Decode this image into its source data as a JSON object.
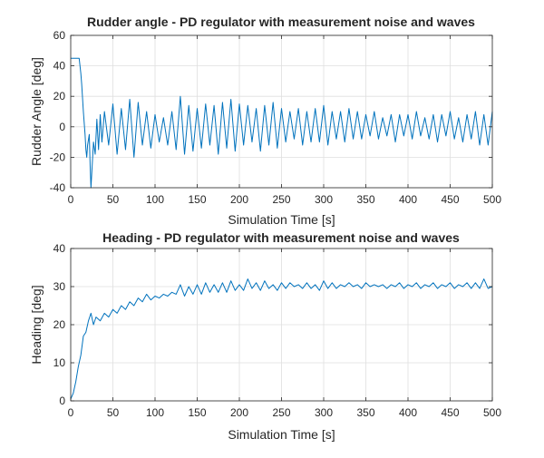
{
  "colors": {
    "line": "#0072BD",
    "grid": "#dfdfdf",
    "axes": "#262626",
    "background": "#ffffff"
  },
  "chart_data": [
    {
      "type": "line",
      "title": "Rudder angle - PD regulator with measurement noise and waves",
      "xlabel": "Simulation Time [s]",
      "ylabel": "Rudder Angle [deg]",
      "xlim": [
        0,
        500
      ],
      "ylim": [
        -40,
        60
      ],
      "xticks": [
        0,
        50,
        100,
        150,
        200,
        250,
        300,
        350,
        400,
        450,
        500
      ],
      "yticks": [
        -40,
        -20,
        0,
        20,
        40,
        60
      ],
      "grid": true,
      "series": [
        {
          "x": [
            0,
            10,
            12,
            13,
            15,
            17,
            18,
            19,
            20,
            22,
            23,
            24,
            25,
            27,
            29,
            31,
            33,
            35,
            37,
            40,
            45,
            50,
            55,
            60,
            65,
            70,
            75,
            80,
            85,
            90,
            95,
            100,
            105,
            110,
            115,
            120,
            125,
            130,
            135,
            140,
            145,
            150,
            155,
            160,
            165,
            170,
            175,
            180,
            185,
            190,
            195,
            200,
            205,
            210,
            215,
            220,
            225,
            230,
            235,
            240,
            245,
            250,
            255,
            260,
            265,
            270,
            275,
            280,
            285,
            290,
            295,
            300,
            305,
            310,
            315,
            320,
            325,
            330,
            335,
            340,
            345,
            350,
            355,
            360,
            365,
            370,
            375,
            380,
            385,
            390,
            395,
            400,
            405,
            410,
            415,
            420,
            425,
            430,
            435,
            440,
            445,
            450,
            455,
            460,
            465,
            470,
            475,
            480,
            485,
            490,
            495,
            500
          ],
          "y": [
            45,
            45,
            35,
            28,
            10,
            -5,
            -15,
            -20,
            -12,
            -5,
            -25,
            -40,
            -30,
            -10,
            -18,
            5,
            -15,
            8,
            -10,
            10,
            -12,
            15,
            -18,
            12,
            -15,
            18,
            -20,
            16,
            -12,
            10,
            -14,
            8,
            -10,
            6,
            -12,
            10,
            -15,
            20,
            -18,
            14,
            -16,
            12,
            -14,
            15,
            -12,
            14,
            -18,
            16,
            -14,
            18,
            -16,
            15,
            -12,
            14,
            -10,
            12,
            -16,
            14,
            -12,
            16,
            -14,
            12,
            -10,
            10,
            -8,
            12,
            -12,
            10,
            -10,
            12,
            -10,
            14,
            -12,
            10,
            -8,
            10,
            -10,
            12,
            -8,
            10,
            -8,
            8,
            -6,
            10,
            -8,
            6,
            -6,
            8,
            -10,
            8,
            -6,
            8,
            -8,
            10,
            -6,
            6,
            -8,
            8,
            -10,
            8,
            -6,
            10,
            -8,
            6,
            -10,
            8,
            -8,
            10,
            -12,
            8,
            -12,
            10
          ]
        }
      ]
    },
    {
      "type": "line",
      "title": "Heading - PD regulator with measurement noise and waves",
      "xlabel": "Simulation Time [s]",
      "ylabel": "Heading [deg]",
      "xlim": [
        0,
        500
      ],
      "ylim": [
        0,
        40
      ],
      "xticks": [
        0,
        50,
        100,
        150,
        200,
        250,
        300,
        350,
        400,
        450,
        500
      ],
      "yticks": [
        0,
        10,
        20,
        30,
        40
      ],
      "grid": true,
      "series": [
        {
          "x": [
            0,
            3,
            6,
            9,
            12,
            15,
            18,
            21,
            24,
            27,
            30,
            35,
            40,
            45,
            50,
            55,
            60,
            65,
            70,
            75,
            80,
            85,
            90,
            95,
            100,
            105,
            110,
            115,
            120,
            125,
            130,
            135,
            140,
            145,
            150,
            155,
            160,
            165,
            170,
            175,
            180,
            185,
            190,
            195,
            200,
            205,
            210,
            215,
            220,
            225,
            230,
            235,
            240,
            245,
            250,
            255,
            260,
            265,
            270,
            275,
            280,
            285,
            290,
            295,
            300,
            305,
            310,
            315,
            320,
            325,
            330,
            335,
            340,
            345,
            350,
            355,
            360,
            365,
            370,
            375,
            380,
            385,
            390,
            395,
            400,
            405,
            410,
            415,
            420,
            425,
            430,
            435,
            440,
            445,
            450,
            455,
            460,
            465,
            470,
            475,
            480,
            485,
            490,
            495,
            500
          ],
          "y": [
            0.5,
            2,
            5,
            9,
            12,
            17,
            18,
            21,
            23,
            20,
            22,
            21,
            23,
            22,
            24,
            23,
            25,
            24,
            26,
            25,
            27,
            26,
            28,
            26.5,
            27.5,
            27,
            28,
            27.5,
            28.5,
            28,
            30.5,
            27.5,
            30,
            28,
            30.5,
            28,
            31,
            28.5,
            30.5,
            28.5,
            31,
            28.5,
            31.5,
            29,
            30.5,
            29,
            32,
            29.5,
            31,
            29,
            31.5,
            29.5,
            30.5,
            29,
            31,
            29.5,
            31,
            30,
            30.5,
            29.5,
            31,
            29.5,
            30.5,
            29,
            31.5,
            29.5,
            31,
            29.5,
            30.5,
            30,
            31,
            30,
            30.5,
            29.5,
            31,
            30,
            30.5,
            30,
            30.5,
            29.5,
            30.5,
            30,
            31,
            29.5,
            30.5,
            30,
            31,
            29.5,
            30.5,
            30,
            31,
            29.5,
            30.5,
            30,
            31,
            29.5,
            30.5,
            30,
            31,
            29.5,
            31,
            29.5,
            32,
            29.5,
            30
          ]
        }
      ]
    }
  ]
}
